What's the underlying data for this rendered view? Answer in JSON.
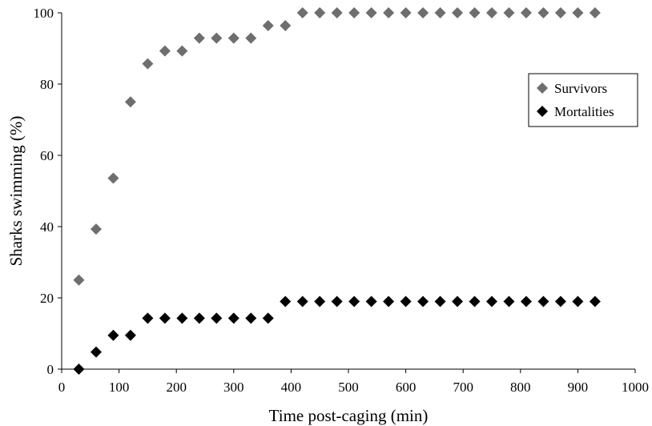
{
  "chart_data": {
    "type": "scatter",
    "title": "",
    "xlabel": "Time post-caging (min)",
    "ylabel": "Sharks swimming (%)",
    "xlim": [
      0,
      1000
    ],
    "ylim": [
      0,
      100
    ],
    "xticks": [
      "0",
      "100",
      "200",
      "300",
      "400",
      "500",
      "600",
      "700",
      "800",
      "900",
      "1000"
    ],
    "yticks": [
      "0",
      "20",
      "40",
      "60",
      "80",
      "100"
    ],
    "grid": false,
    "legend_position": "right",
    "series": [
      {
        "name": "Survivors",
        "color": "#6e6e6e",
        "marker": "diamond",
        "x": [
          30,
          60,
          90,
          120,
          150,
          180,
          210,
          240,
          270,
          300,
          330,
          360,
          390,
          420,
          450,
          480,
          510,
          540,
          570,
          600,
          630,
          660,
          690,
          720,
          750,
          780,
          810,
          840,
          870,
          900,
          930
        ],
        "y": [
          25,
          39.3,
          53.6,
          75,
          85.7,
          89.3,
          89.3,
          92.9,
          92.9,
          92.9,
          92.9,
          96.4,
          96.4,
          100,
          100,
          100,
          100,
          100,
          100,
          100,
          100,
          100,
          100,
          100,
          100,
          100,
          100,
          100,
          100,
          100,
          100
        ]
      },
      {
        "name": "Mortalities",
        "color": "#000000",
        "marker": "diamond",
        "x": [
          30,
          60,
          90,
          120,
          150,
          180,
          210,
          240,
          270,
          300,
          330,
          360,
          390,
          420,
          450,
          480,
          510,
          540,
          570,
          600,
          630,
          660,
          690,
          720,
          750,
          780,
          810,
          840,
          870,
          900,
          930
        ],
        "y": [
          0,
          4.8,
          9.5,
          9.5,
          14.3,
          14.3,
          14.3,
          14.3,
          14.3,
          14.3,
          14.3,
          14.3,
          19,
          19,
          19,
          19,
          19,
          19,
          19,
          19,
          19,
          19,
          19,
          19,
          19,
          19,
          19,
          19,
          19,
          19,
          19
        ]
      }
    ]
  }
}
